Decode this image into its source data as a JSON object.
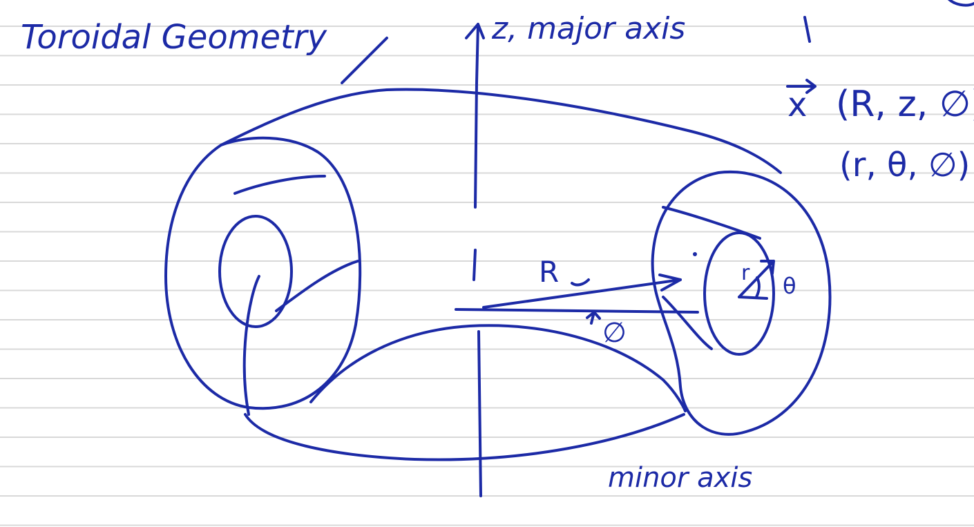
{
  "title": "Toroidal Geometry",
  "major_axis_label": "z, major axis",
  "minor_axis_label": "minor axis",
  "position_vector": "x",
  "coords_cylindrical": "(R, z, ∅)",
  "coords_toroidal": "(r, θ, ∅)",
  "label_R": "R",
  "label_phi": "∅",
  "label_r": "r",
  "label_theta": "θ",
  "colors": {
    "ink": "#1c2aa6",
    "rule_line": "#d8d8d8",
    "paper": "#ffffff"
  }
}
